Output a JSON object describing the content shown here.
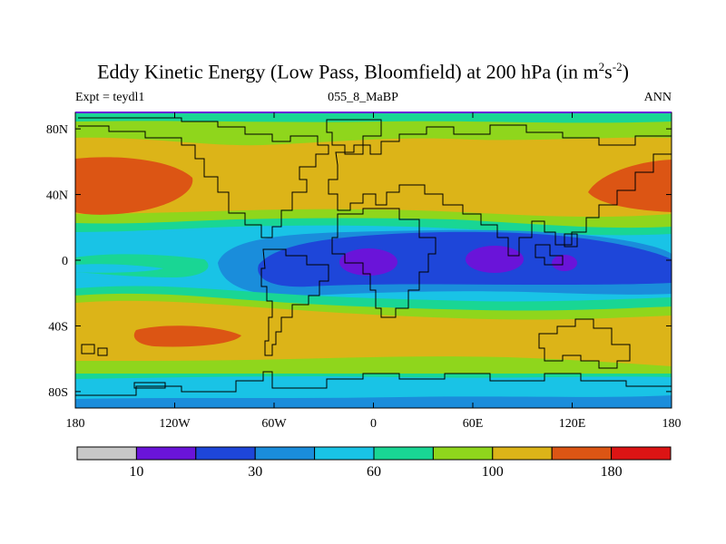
{
  "title": {
    "main": "Eddy Kinetic Energy (Low Pass, Bloomfield) at 200 hPa (in m",
    "sup1": "2",
    "mid": "s",
    "sup2": "-2",
    "end": ")"
  },
  "experiment": "Expt = teydl1",
  "run": "055_8_MaBP",
  "season": "ANN",
  "map": {
    "lon_ticks": [
      {
        "value": -180,
        "label": "180"
      },
      {
        "value": -120,
        "label": "120W"
      },
      {
        "value": -60,
        "label": "60W"
      },
      {
        "value": 0,
        "label": "0"
      },
      {
        "value": 60,
        "label": "60E"
      },
      {
        "value": 120,
        "label": "120E"
      },
      {
        "value": 180,
        "label": "180"
      }
    ],
    "lat_ticks": [
      {
        "value": 80,
        "label": "80N"
      },
      {
        "value": 40,
        "label": "40N"
      },
      {
        "value": 0,
        "label": "0"
      },
      {
        "value": -40,
        "label": "40S"
      },
      {
        "value": -80,
        "label": "80S"
      }
    ],
    "lat_range": [
      -90,
      90
    ],
    "lon_range": [
      -180,
      180
    ]
  },
  "colorbar": {
    "colors": [
      "#c8c8c8",
      "#6a14d9",
      "#1e46d9",
      "#1a8ddb",
      "#19c3e6",
      "#19d694",
      "#8fd61c",
      "#dcb418",
      "#dc5514",
      "#dc1414"
    ],
    "labels": [
      {
        "index": 1,
        "text": "10"
      },
      {
        "index": 3,
        "text": "30"
      },
      {
        "index": 5,
        "text": "60"
      },
      {
        "index": 7,
        "text": "100"
      },
      {
        "index": 9,
        "text": "180"
      }
    ]
  }
}
